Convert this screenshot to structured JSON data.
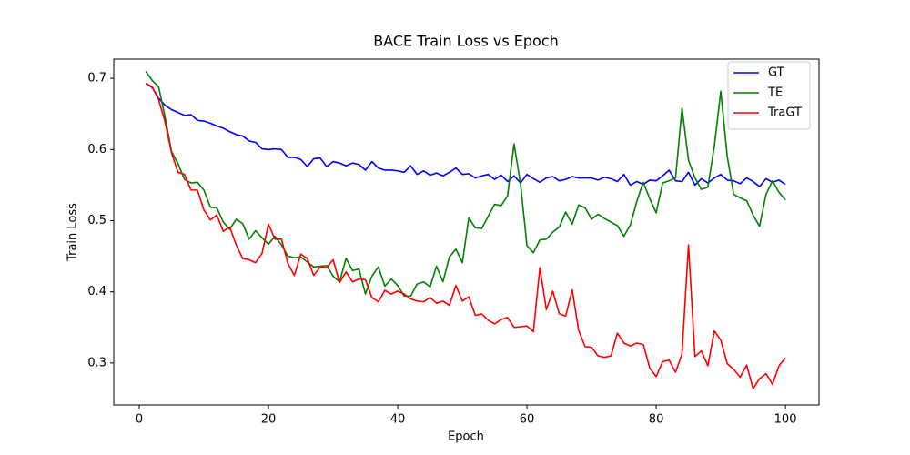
{
  "chart_data": {
    "type": "line",
    "title": "BACE Train Loss vs Epoch",
    "x_label": "Epoch",
    "y_label": "Train Loss",
    "x": [
      1,
      2,
      3,
      4,
      5,
      6,
      7,
      8,
      9,
      10,
      11,
      12,
      13,
      14,
      15,
      16,
      17,
      18,
      19,
      20,
      21,
      22,
      23,
      24,
      25,
      26,
      27,
      28,
      29,
      30,
      31,
      32,
      33,
      34,
      35,
      36,
      37,
      38,
      39,
      40,
      41,
      42,
      43,
      44,
      45,
      46,
      47,
      48,
      49,
      50,
      51,
      52,
      53,
      54,
      55,
      56,
      57,
      58,
      59,
      60,
      61,
      62,
      63,
      64,
      65,
      66,
      67,
      68,
      69,
      70,
      71,
      72,
      73,
      74,
      75,
      76,
      77,
      78,
      79,
      80,
      81,
      82,
      83,
      84,
      85,
      86,
      87,
      88,
      89,
      90,
      91,
      92,
      93,
      94,
      95,
      96,
      97,
      98,
      99,
      100
    ],
    "series": [
      {
        "name": "GT",
        "color": "#0000ff",
        "values": [
          0.693,
          0.687,
          0.672,
          0.662,
          0.656,
          0.652,
          0.648,
          0.649,
          0.641,
          0.64,
          0.637,
          0.633,
          0.63,
          0.625,
          0.621,
          0.619,
          0.612,
          0.61,
          0.601,
          0.6,
          0.601,
          0.6,
          0.589,
          0.589,
          0.586,
          0.576,
          0.587,
          0.588,
          0.576,
          0.583,
          0.581,
          0.577,
          0.581,
          0.579,
          0.571,
          0.583,
          0.574,
          0.571,
          0.571,
          0.57,
          0.568,
          0.577,
          0.565,
          0.57,
          0.564,
          0.567,
          0.563,
          0.568,
          0.574,
          0.565,
          0.566,
          0.56,
          0.563,
          0.565,
          0.558,
          0.564,
          0.555,
          0.563,
          0.553,
          0.565,
          0.559,
          0.554,
          0.56,
          0.562,
          0.556,
          0.558,
          0.562,
          0.56,
          0.56,
          0.56,
          0.557,
          0.561,
          0.559,
          0.555,
          0.565,
          0.55,
          0.555,
          0.551,
          0.557,
          0.556,
          0.563,
          0.571,
          0.556,
          0.555,
          0.568,
          0.55,
          0.559,
          0.553,
          0.56,
          0.565,
          0.557,
          0.556,
          0.552,
          0.56,
          0.555,
          0.548,
          0.559,
          0.554,
          0.557,
          0.551
        ]
      },
      {
        "name": "TE",
        "color": "#008000",
        "values": [
          0.71,
          0.697,
          0.688,
          0.645,
          0.597,
          0.58,
          0.558,
          0.553,
          0.554,
          0.543,
          0.519,
          0.518,
          0.498,
          0.488,
          0.502,
          0.496,
          0.474,
          0.486,
          0.476,
          0.467,
          0.478,
          0.466,
          0.45,
          0.448,
          0.449,
          0.442,
          0.435,
          0.436,
          0.437,
          0.422,
          0.414,
          0.447,
          0.43,
          0.432,
          0.397,
          0.422,
          0.435,
          0.408,
          0.418,
          0.409,
          0.394,
          0.394,
          0.411,
          0.414,
          0.407,
          0.436,
          0.414,
          0.449,
          0.46,
          0.441,
          0.504,
          0.49,
          0.489,
          0.506,
          0.523,
          0.521,
          0.535,
          0.608,
          0.552,
          0.465,
          0.455,
          0.473,
          0.474,
          0.484,
          0.491,
          0.512,
          0.495,
          0.522,
          0.518,
          0.502,
          0.509,
          0.503,
          0.498,
          0.493,
          0.478,
          0.494,
          0.527,
          0.554,
          0.531,
          0.511,
          0.553,
          0.556,
          0.56,
          0.658,
          0.585,
          0.56,
          0.544,
          0.547,
          0.605,
          0.682,
          0.59,
          0.537,
          0.532,
          0.528,
          0.508,
          0.492,
          0.537,
          0.556,
          0.54,
          0.529
        ]
      },
      {
        "name": "TraGT",
        "color": "#ff0000",
        "values": [
          0.693,
          0.688,
          0.67,
          0.638,
          0.595,
          0.568,
          0.565,
          0.543,
          0.543,
          0.515,
          0.501,
          0.508,
          0.485,
          0.491,
          0.466,
          0.447,
          0.445,
          0.441,
          0.454,
          0.495,
          0.474,
          0.474,
          0.44,
          0.423,
          0.453,
          0.447,
          0.423,
          0.435,
          0.434,
          0.445,
          0.413,
          0.428,
          0.414,
          0.418,
          0.417,
          0.392,
          0.386,
          0.402,
          0.397,
          0.401,
          0.397,
          0.39,
          0.387,
          0.386,
          0.392,
          0.384,
          0.387,
          0.381,
          0.409,
          0.387,
          0.393,
          0.367,
          0.369,
          0.36,
          0.355,
          0.361,
          0.364,
          0.35,
          0.351,
          0.352,
          0.344,
          0.434,
          0.375,
          0.401,
          0.369,
          0.366,
          0.403,
          0.346,
          0.323,
          0.322,
          0.31,
          0.308,
          0.31,
          0.342,
          0.328,
          0.324,
          0.328,
          0.326,
          0.293,
          0.281,
          0.302,
          0.304,
          0.287,
          0.313,
          0.466,
          0.309,
          0.317,
          0.296,
          0.345,
          0.332,
          0.299,
          0.291,
          0.28,
          0.297,
          0.264,
          0.278,
          0.285,
          0.27,
          0.296,
          0.307
        ]
      }
    ],
    "xlim": [
      -3.95,
      105.2
    ],
    "ylim": [
      0.241,
      0.727
    ],
    "xticks": [
      0,
      20,
      40,
      60,
      80,
      100
    ],
    "yticks": [
      0.3,
      0.4,
      0.5,
      0.6,
      0.7
    ],
    "legend": "upper right"
  }
}
